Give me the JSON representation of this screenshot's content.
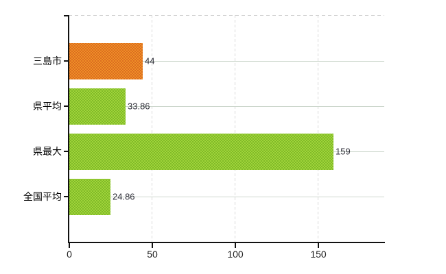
{
  "chart_data": {
    "type": "bar",
    "orientation": "horizontal",
    "title": "",
    "xlabel": "",
    "ylabel": "",
    "categories": [
      "三島市",
      "県平均",
      "県最大",
      "全国平均"
    ],
    "values": [
      44,
      33.86,
      159,
      24.86
    ],
    "value_labels": [
      "44",
      "33.86",
      "159",
      "24.86"
    ],
    "bar_color_keys": [
      "orange",
      "green",
      "green",
      "green"
    ],
    "xlim": [
      0,
      190
    ],
    "x_ticks": [
      0,
      50,
      100,
      150
    ],
    "x_tick_labels": [
      "0",
      "50",
      "100",
      "150"
    ],
    "grid": true,
    "legend": "none"
  },
  "colors": {
    "bar_orange_base": "#ef9026",
    "bar_orange_dot": "#d4601f",
    "bar_green_base": "#a0d43a",
    "bar_green_dot": "#76b122",
    "axis": "#111111",
    "gridline_horizontal": "#ccd6cc",
    "gridline_vertical": "#d9d9d9",
    "plot_top_border": "#cfcfcf",
    "value_text": "#2e2e38",
    "category_text": "#000000",
    "tick_text": "#1c1c1c",
    "background": "#ffffff"
  }
}
